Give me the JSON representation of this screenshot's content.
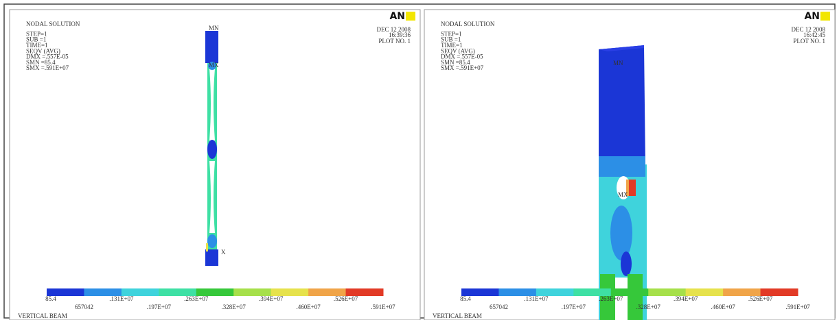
{
  "colorbar": {
    "colors": [
      "#1b36d6",
      "#2c8fe6",
      "#3fd3dc",
      "#3ee0a4",
      "#36c83a",
      "#a6e04a",
      "#e6e24c",
      "#f0a448",
      "#e23a26"
    ]
  },
  "panels": [
    {
      "logo": "AN",
      "header": [
        "NODAL SOLUTION",
        "STEP=1",
        "SUB =1",
        "TIME=1",
        "SEQV     (AVG)",
        "DMX =.557E-05",
        "SMN =85.4",
        "SMX =.591E+07"
      ],
      "date": "DEC 12 2008",
      "time": "16:39:36",
      "plot": "PLOT NO.   1",
      "markers": [
        "MN",
        "MX",
        "X"
      ],
      "legend": [
        "85.4",
        "657042",
        ".131E+07",
        ".197E+07",
        ".263E+07",
        ".328E+07",
        ".394E+07",
        ".460E+07",
        ".526E+07",
        ".591E+07"
      ],
      "footer": "VERTICAL BEAM"
    },
    {
      "logo": "AN",
      "header": [
        "NODAL SOLUTION",
        "STEP=1",
        "SUB =1",
        "TIME=1",
        "SEQV     (AVG)",
        "DMX =.557E-05",
        "SMN =85.4",
        "SMX =.591E+07"
      ],
      "date": "DEC 12 2008",
      "time": "16:42:45",
      "plot": "PLOT NO.   1",
      "markers": [
        "MN",
        "MX"
      ],
      "legend": [
        "85.4",
        "657042",
        ".131E+07",
        ".197E+07",
        ".263E+07",
        ".328E+07",
        ".394E+07",
        ".460E+07",
        ".526E+07",
        ".591E+07"
      ],
      "footer": "VERTICAL BEAM"
    }
  ]
}
